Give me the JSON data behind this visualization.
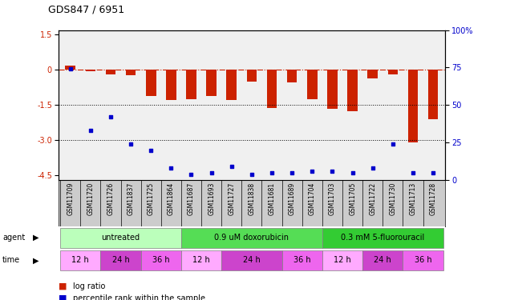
{
  "title": "GDS847 / 6951",
  "samples": [
    "GSM11709",
    "GSM11720",
    "GSM11726",
    "GSM11837",
    "GSM11725",
    "GSM11864",
    "GSM11687",
    "GSM11693",
    "GSM11727",
    "GSM11838",
    "GSM11681",
    "GSM11689",
    "GSM11704",
    "GSM11703",
    "GSM11705",
    "GSM11722",
    "GSM11730",
    "GSM11713",
    "GSM11728"
  ],
  "log_ratio": [
    0.17,
    -0.05,
    -0.18,
    -0.22,
    -1.1,
    -1.3,
    -1.25,
    -1.1,
    -1.3,
    -0.5,
    -1.62,
    -0.55,
    -1.25,
    -1.65,
    -1.75,
    -0.35,
    -0.2,
    -3.1,
    -2.1
  ],
  "percentile_rank": [
    74,
    33,
    42,
    24,
    20,
    8,
    4,
    5,
    9,
    4,
    5,
    5,
    6,
    6,
    5,
    8,
    24,
    5,
    5
  ],
  "ylim_left": [
    -4.7,
    1.7
  ],
  "ylim_right": [
    0,
    100
  ],
  "yticks_left": [
    1.5,
    0,
    -1.5,
    -3.0,
    -4.5
  ],
  "yticks_right": [
    100,
    75,
    50,
    25,
    0
  ],
  "agent_groups": [
    {
      "label": "untreated",
      "start": 0,
      "end": 6,
      "color": "#bbffbb"
    },
    {
      "label": "0.9 uM doxorubicin",
      "start": 6,
      "end": 13,
      "color": "#55dd55"
    },
    {
      "label": "0.3 mM 5-fluorouracil",
      "start": 13,
      "end": 19,
      "color": "#33cc33"
    }
  ],
  "time_groups": [
    {
      "label": "12 h",
      "start": 0,
      "end": 2,
      "color": "#ffaaff"
    },
    {
      "label": "24 h",
      "start": 2,
      "end": 4,
      "color": "#cc44cc"
    },
    {
      "label": "36 h",
      "start": 4,
      "end": 6,
      "color": "#ee66ee"
    },
    {
      "label": "12 h",
      "start": 6,
      "end": 8,
      "color": "#ffaaff"
    },
    {
      "label": "24 h",
      "start": 8,
      "end": 11,
      "color": "#cc44cc"
    },
    {
      "label": "36 h",
      "start": 11,
      "end": 13,
      "color": "#ee66ee"
    },
    {
      "label": "12 h",
      "start": 13,
      "end": 15,
      "color": "#ffaaff"
    },
    {
      "label": "24 h",
      "start": 15,
      "end": 17,
      "color": "#cc44cc"
    },
    {
      "label": "36 h",
      "start": 17,
      "end": 19,
      "color": "#ee66ee"
    }
  ],
  "bar_color": "#cc2200",
  "dot_color": "#0000cc",
  "dashed_line_color": "#cc2200",
  "dotted_line_color": "#000000",
  "sample_bg_color": "#cccccc",
  "background_color": "#ffffff"
}
